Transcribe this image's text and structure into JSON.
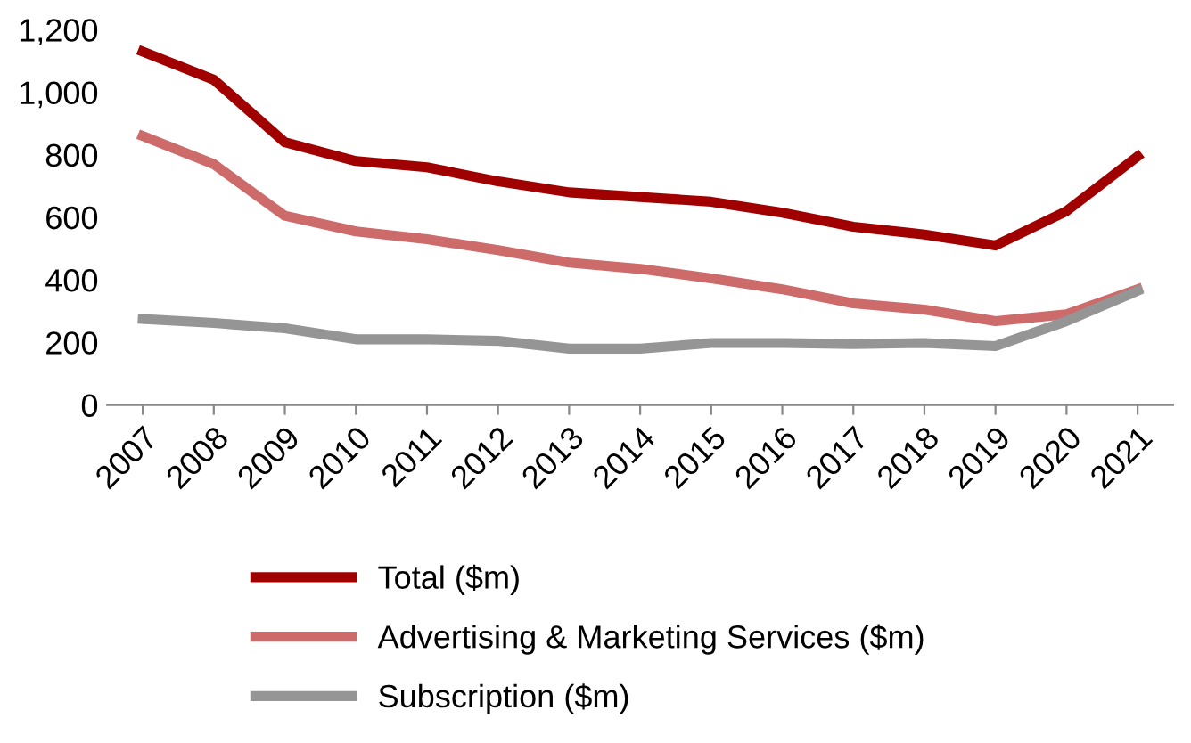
{
  "chart_data": {
    "type": "line",
    "categories": [
      "2007",
      "2008",
      "2009",
      "2010",
      "2011",
      "2012",
      "2013",
      "2014",
      "2015",
      "2016",
      "2017",
      "2018",
      "2019",
      "2020",
      "2021"
    ],
    "series": [
      {
        "name": "Total ($m)",
        "color": "#a00000",
        "values": [
          1130,
          1040,
          840,
          780,
          760,
          715,
          680,
          665,
          650,
          615,
          570,
          545,
          510,
          620,
          795
        ]
      },
      {
        "name": "Advertising & Marketing Services ($m)",
        "color": "#cd6b6b",
        "values": [
          860,
          770,
          605,
          555,
          530,
          495,
          455,
          435,
          405,
          370,
          325,
          305,
          268,
          290,
          370
        ]
      },
      {
        "name": "Subscription ($m)",
        "color": "#959595",
        "values": [
          275,
          262,
          245,
          210,
          210,
          205,
          180,
          180,
          198,
          198,
          195,
          198,
          188,
          268,
          365
        ]
      }
    ],
    "ylim": [
      0,
      1200
    ],
    "yticks": [
      0,
      {
        "value": 200,
        "label": "200"
      },
      {
        "value": 400,
        "label": "400"
      },
      {
        "value": 600,
        "label": "600"
      },
      {
        "value": 800,
        "label": "800"
      },
      {
        "value": 1000,
        "label": "1,000"
      },
      {
        "value": 1200,
        "label": "1,200"
      }
    ],
    "legend": "bottom",
    "grid": false,
    "marker": "none",
    "line_style": "solid"
  }
}
